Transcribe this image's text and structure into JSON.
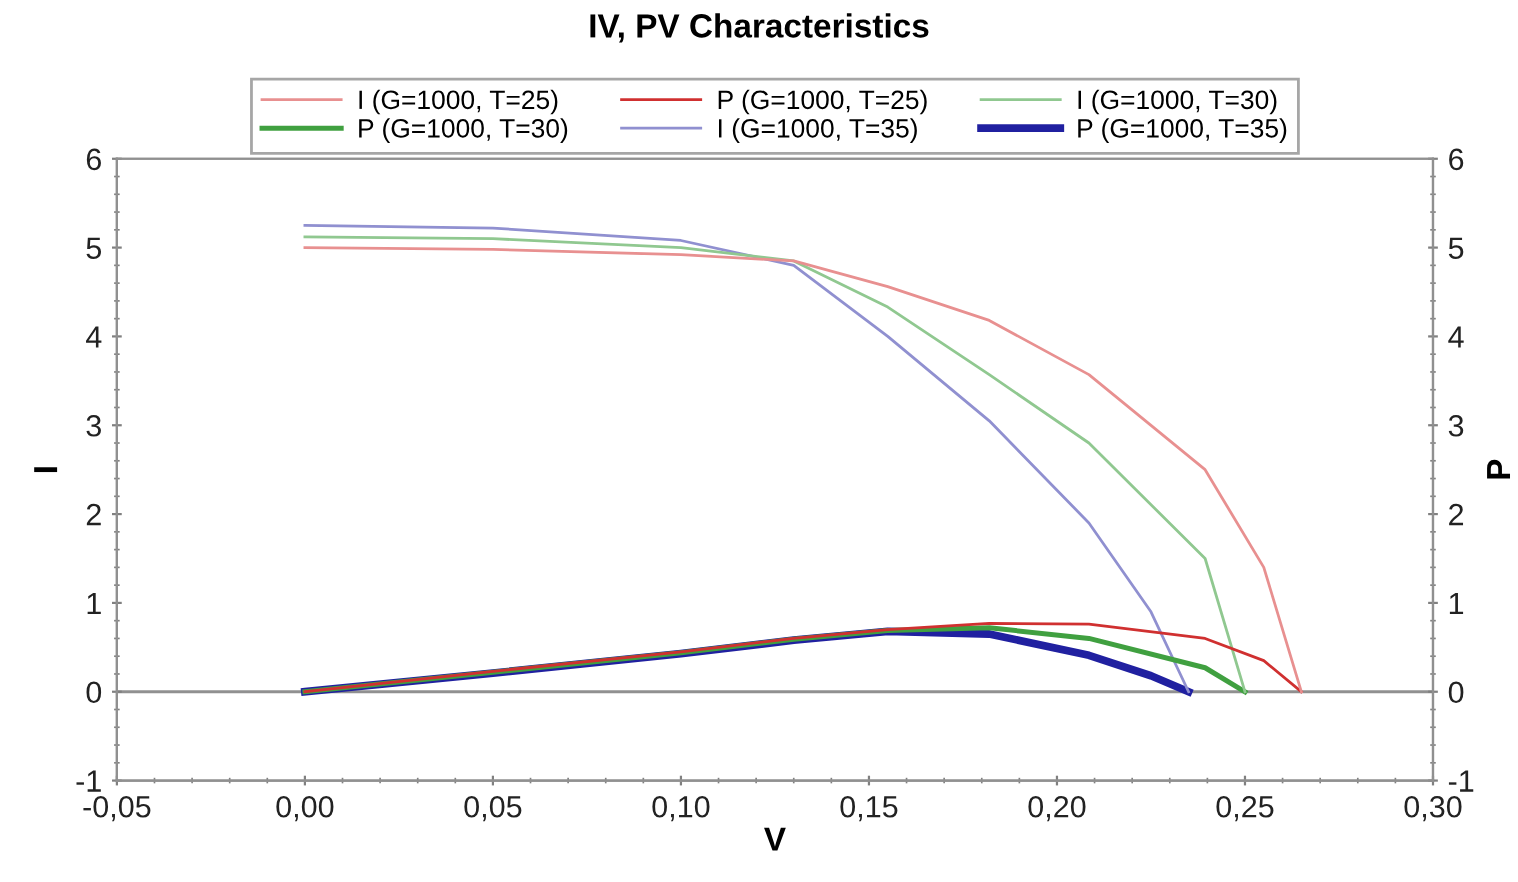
{
  "chart_data": {
    "type": "line",
    "title": "IV, PV Characteristics",
    "xlabel": "V",
    "ylabel": "I",
    "y2label": "P",
    "xlim": [
      -0.05,
      0.3
    ],
    "ylim": [
      -1,
      6
    ],
    "y2lim": [
      -1,
      6
    ],
    "xticks": [
      {
        "value": -0.05,
        "label": "-0,05"
      },
      {
        "value": 0.0,
        "label": "0,00"
      },
      {
        "value": 0.05,
        "label": "0,05"
      },
      {
        "value": 0.1,
        "label": "0,10"
      },
      {
        "value": 0.15,
        "label": "0,15"
      },
      {
        "value": 0.2,
        "label": "0,20"
      },
      {
        "value": 0.25,
        "label": "0,25"
      },
      {
        "value": 0.3,
        "label": "0,30"
      }
    ],
    "yticks": [
      -1,
      0,
      1,
      2,
      3,
      4,
      5,
      6
    ],
    "y2ticks": [
      -1,
      0,
      1,
      2,
      3,
      4,
      5,
      6
    ],
    "grid": false,
    "legend": "top",
    "marker": "none",
    "line_style": "solid",
    "ref_lines": [
      {
        "axis": "y",
        "value": 0,
        "color": "#909090"
      }
    ],
    "series": [
      {
        "name": "I (G=1000, T=25)",
        "color": "#e89090",
        "x": [
          0,
          0.05,
          0.1,
          0.13,
          0.155,
          0.182,
          0.2085,
          0.2394,
          0.255,
          0.265
        ],
        "values": [
          5.0,
          4.98,
          4.92,
          4.85,
          4.56,
          4.18,
          3.57,
          2.5,
          1.4,
          0
        ]
      },
      {
        "name": "P (G=1000, T=25)",
        "color": "#d03030",
        "x": [
          0,
          0.05,
          0.1,
          0.13,
          0.155,
          0.182,
          0.2085,
          0.2394,
          0.255,
          0.265
        ],
        "values": [
          0,
          0.23,
          0.45,
          0.6,
          0.7,
          0.77,
          0.76,
          0.6,
          0.35,
          0
        ]
      },
      {
        "name": "I (G=1000, T=30)",
        "color": "#90c890",
        "x": [
          0,
          0.05,
          0.1,
          0.13,
          0.155,
          0.182,
          0.2085,
          0.2394,
          0.25
        ],
        "values": [
          5.12,
          5.1,
          5.0,
          4.85,
          4.33,
          3.57,
          2.8,
          1.5,
          0
        ]
      },
      {
        "name": "P (G=1000, T=30)",
        "color": "#40a040",
        "x": [
          0,
          0.05,
          0.1,
          0.13,
          0.155,
          0.182,
          0.2085,
          0.2394,
          0.25
        ],
        "values": [
          0,
          0.22,
          0.44,
          0.59,
          0.69,
          0.72,
          0.6,
          0.27,
          0
        ]
      },
      {
        "name": "I (G=1000, T=35)",
        "color": "#9090d0",
        "x": [
          0,
          0.05,
          0.1,
          0.13,
          0.155,
          0.182,
          0.2085,
          0.225,
          0.235
        ],
        "values": [
          5.25,
          5.22,
          5.08,
          4.8,
          4.0,
          3.05,
          1.9,
          0.9,
          0
        ]
      },
      {
        "name": "P (G=1000, T=35)",
        "color": "#2020a0",
        "x": [
          0,
          0.05,
          0.1,
          0.13,
          0.155,
          0.182,
          0.2085,
          0.225,
          0.235
        ],
        "values": [
          0,
          0.21,
          0.43,
          0.58,
          0.68,
          0.65,
          0.41,
          0.18,
          0
        ]
      }
    ]
  }
}
